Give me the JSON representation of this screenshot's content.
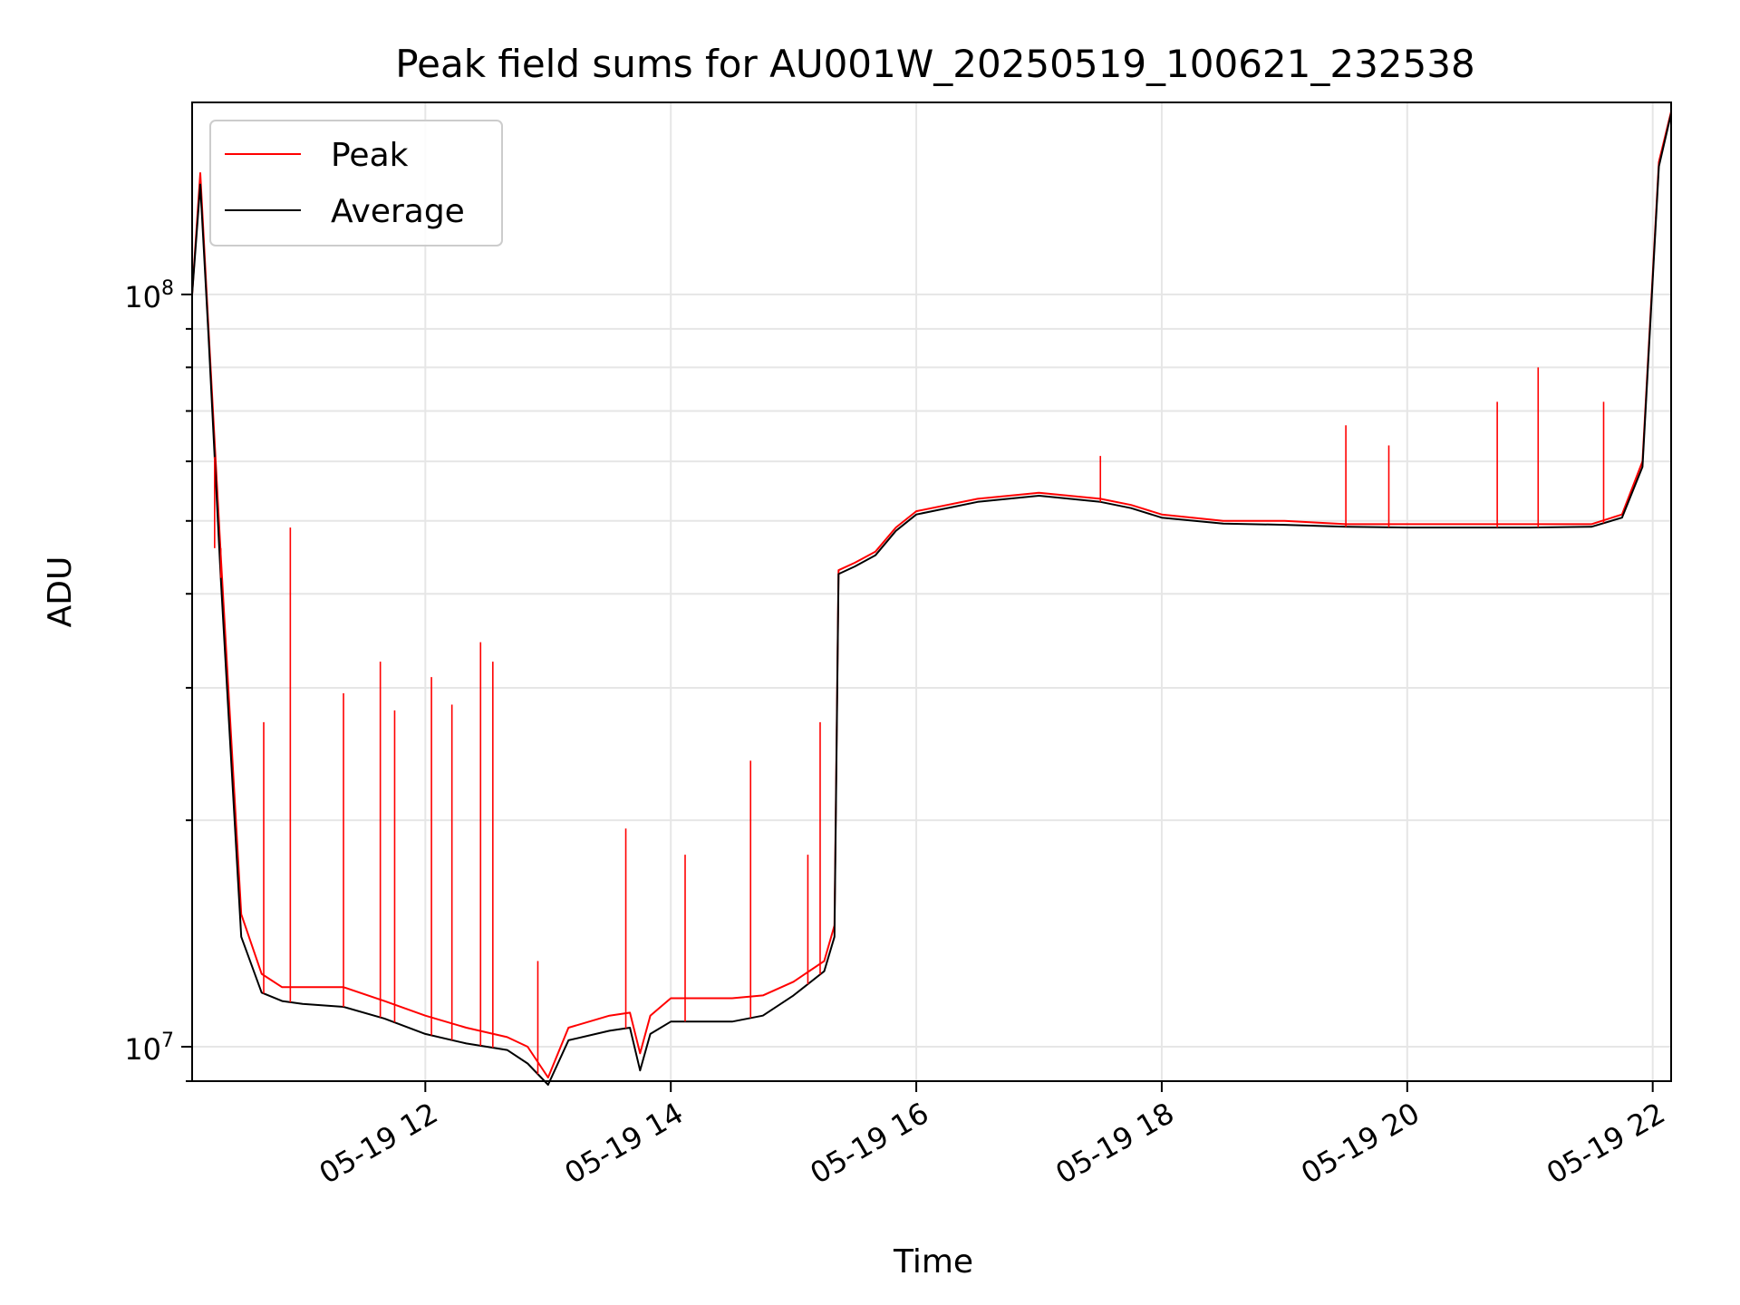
{
  "chart_data": {
    "type": "line",
    "title": "Peak field sums for AU001W_20250519_100621_232538",
    "xlabel": "Time",
    "ylabel": "ADU",
    "yscale": "log",
    "ylim": [
      9000000,
      180000000
    ],
    "xlim": [
      "05-19 10:06",
      "05-19 22:09"
    ],
    "x_ticks": [
      "05-19 12",
      "05-19 14",
      "05-19 16",
      "05-19 18",
      "05-19 20",
      "05-19 22"
    ],
    "y_ticks": [
      "10^7",
      "10^8"
    ],
    "grid": true,
    "legend": "top-left",
    "series": [
      {
        "name": "Peak",
        "color": "#ff0000",
        "x": [
          "05-19 10:06",
          "05-19 10:10",
          "05-19 10:14",
          "05-19 10:20",
          "05-19 10:30",
          "05-19 10:40",
          "05-19 10:50",
          "05-19 11:00",
          "05-19 11:20",
          "05-19 11:40",
          "05-19 12:00",
          "05-19 12:20",
          "05-19 12:40",
          "05-19 12:50",
          "05-19 13:00",
          "05-19 13:10",
          "05-19 13:30",
          "05-19 13:40",
          "05-19 13:45",
          "05-19 13:50",
          "05-19 14:00",
          "05-19 14:30",
          "05-19 14:45",
          "05-19 15:00",
          "05-19 15:15",
          "05-19 15:20",
          "05-19 15:22",
          "05-19 15:30",
          "05-19 15:40",
          "05-19 15:50",
          "05-19 16:00",
          "05-19 16:30",
          "05-19 17:00",
          "05-19 17:30",
          "05-19 17:45",
          "05-19 18:00",
          "05-19 18:30",
          "05-19 19:00",
          "05-19 19:30",
          "05-19 20:00",
          "05-19 20:30",
          "05-19 21:00",
          "05-19 21:30",
          "05-19 21:45",
          "05-19 21:55",
          "05-19 22:03",
          "05-19 22:09"
        ],
        "values": [
          100000000,
          145000000,
          90000000,
          45000000,
          15000000,
          12500000,
          12000000,
          12000000,
          12000000,
          11500000,
          11000000,
          10600000,
          10300000,
          10000000,
          9100000,
          10600000,
          11000000,
          11100000,
          9800000,
          11000000,
          11600000,
          11600000,
          11700000,
          12200000,
          13000000,
          14500000,
          43000000,
          44000000,
          45500000,
          49000000,
          51500000,
          53500000,
          54500000,
          53500000,
          52500000,
          51000000,
          50000000,
          50000000,
          49500000,
          49500000,
          49500000,
          49500000,
          49500000,
          51000000,
          60000000,
          150000000,
          175000000
        ]
      },
      {
        "name": "Average",
        "color": "#000000",
        "x": [
          "05-19 10:06",
          "05-19 10:10",
          "05-19 10:14",
          "05-19 10:20",
          "05-19 10:30",
          "05-19 10:40",
          "05-19 10:50",
          "05-19 11:00",
          "05-19 11:20",
          "05-19 11:40",
          "05-19 12:00",
          "05-19 12:20",
          "05-19 12:40",
          "05-19 12:50",
          "05-19 13:00",
          "05-19 13:10",
          "05-19 13:30",
          "05-19 13:40",
          "05-19 13:45",
          "05-19 13:50",
          "05-19 14:00",
          "05-19 14:30",
          "05-19 14:45",
          "05-19 15:00",
          "05-19 15:15",
          "05-19 15:20",
          "05-19 15:22",
          "05-19 15:30",
          "05-19 15:40",
          "05-19 15:50",
          "05-19 16:00",
          "05-19 16:30",
          "05-19 17:00",
          "05-19 17:30",
          "05-19 17:45",
          "05-19 18:00",
          "05-19 18:30",
          "05-19 19:00",
          "05-19 19:30",
          "05-19 20:00",
          "05-19 20:30",
          "05-19 21:00",
          "05-19 21:30",
          "05-19 21:45",
          "05-19 21:55",
          "05-19 22:03",
          "05-19 22:09"
        ],
        "values": [
          100000000,
          140000000,
          88000000,
          42000000,
          14000000,
          11800000,
          11500000,
          11400000,
          11300000,
          10900000,
          10400000,
          10100000,
          9900000,
          9500000,
          8900000,
          10200000,
          10500000,
          10600000,
          9300000,
          10400000,
          10800000,
          10800000,
          11000000,
          11700000,
          12600000,
          14000000,
          42500000,
          43500000,
          45000000,
          48500000,
          51000000,
          53000000,
          54000000,
          53000000,
          52000000,
          50500000,
          49600000,
          49400000,
          49100000,
          49000000,
          49000000,
          49000000,
          49100000,
          50500000,
          59000000,
          148000000,
          174000000
        ]
      }
    ],
    "spikes": [
      {
        "time": "05-19 10:17",
        "value": 46000000
      },
      {
        "time": "05-19 10:20",
        "value": 46000000
      },
      {
        "time": "05-19 10:41",
        "value": 27000000
      },
      {
        "time": "05-19 10:54",
        "value": 49000000
      },
      {
        "time": "05-19 11:20",
        "value": 29500000
      },
      {
        "time": "05-19 11:38",
        "value": 32500000
      },
      {
        "time": "05-19 11:45",
        "value": 28000000
      },
      {
        "time": "05-19 12:03",
        "value": 31000000
      },
      {
        "time": "05-19 12:13",
        "value": 28500000
      },
      {
        "time": "05-19 12:27",
        "value": 34500000
      },
      {
        "time": "05-19 12:33",
        "value": 32500000
      },
      {
        "time": "05-19 12:55",
        "value": 13000000
      },
      {
        "time": "05-19 13:38",
        "value": 19500000
      },
      {
        "time": "05-19 14:07",
        "value": 18000000
      },
      {
        "time": "05-19 14:39",
        "value": 24000000
      },
      {
        "time": "05-19 15:07",
        "value": 18000000
      },
      {
        "time": "05-19 15:13",
        "value": 27000000
      },
      {
        "time": "05-19 17:30",
        "value": 61000000
      },
      {
        "time": "05-19 19:30",
        "value": 67000000
      },
      {
        "time": "05-19 19:51",
        "value": 63000000
      },
      {
        "time": "05-19 20:44",
        "value": 72000000
      },
      {
        "time": "05-19 21:04",
        "value": 80000000
      },
      {
        "time": "05-19 21:36",
        "value": 72000000
      }
    ]
  }
}
